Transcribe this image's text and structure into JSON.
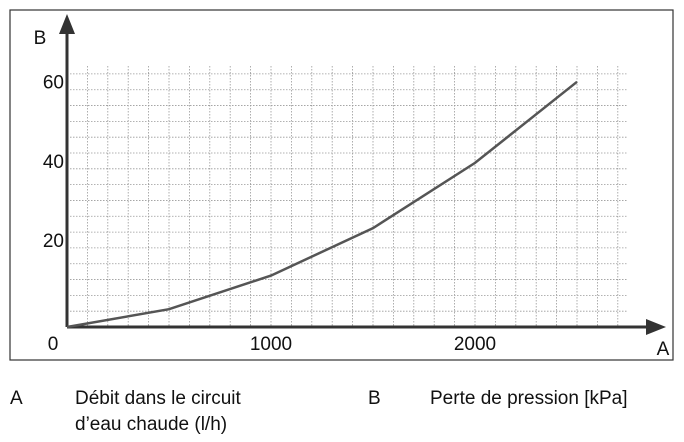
{
  "chart_data": {
    "type": "line",
    "x_label": "A",
    "y_label": "B",
    "x": [
      0,
      500,
      1000,
      1500,
      2000,
      2500
    ],
    "series": [
      {
        "color": "#555555",
        "values": [
          0,
          4.5,
          13,
          25,
          41.5,
          62
        ]
      }
    ],
    "xlim": [
      0,
      2750
    ],
    "ylim": [
      0,
      66
    ],
    "xticks": [
      0,
      1000,
      2000
    ],
    "yticks": [
      20,
      40,
      60
    ],
    "grid": true,
    "x_grid_step": 100,
    "y_grid_step": 4
  },
  "legend": [
    {
      "key": "A",
      "lines": [
        "Débit dans le circuit",
        "d’eau chaude (l/h)"
      ]
    },
    {
      "key": "B",
      "lines": [
        "Perte de pression [kPa]"
      ]
    }
  ]
}
